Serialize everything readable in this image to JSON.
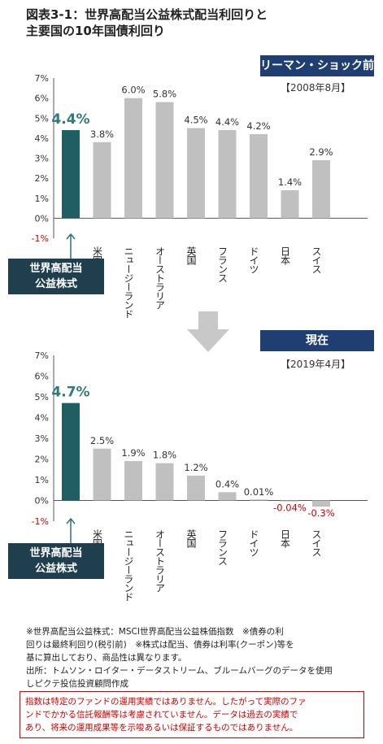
{
  "title": {
    "line1": "図表3-1：世界高配当公益株式配当利回りと",
    "line2": "主要国の10年国債利回り"
  },
  "colors": {
    "highlight_bar": "#1f5f63",
    "bar": "#c0c0c0",
    "badge": "#1f3f73",
    "highlight_box": "#1f3f4f",
    "negative_text": "#cc0000",
    "arrow": "#c8c8c8"
  },
  "highlight_label": {
    "line1": "世界高配当",
    "line2": "公益株式"
  },
  "chart_data": [
    {
      "type": "bar",
      "badge": "リーマン・ショック前",
      "date_label": "【2008年8月】",
      "categories": [
        "",
        "米国",
        "ニュージーランド",
        "オーストラリア",
        "英国",
        "フランス",
        "ドイツ",
        "日本",
        "スイス"
      ],
      "values": [
        4.4,
        3.8,
        6.0,
        5.8,
        4.5,
        4.4,
        4.2,
        1.4,
        2.9
      ],
      "value_labels": [
        "4.4%",
        "3.8%",
        "6.0%",
        "5.8%",
        "4.5%",
        "4.4%",
        "4.2%",
        "1.4%",
        "2.9%"
      ],
      "ylim": [
        -1,
        7
      ],
      "yticks": [
        "-1%",
        "0%",
        "1%",
        "2%",
        "3%",
        "4%",
        "5%",
        "6%",
        "7%"
      ],
      "grid": false
    },
    {
      "type": "bar",
      "badge": "現在",
      "date_label": "【2019年4月】",
      "categories": [
        "",
        "米国",
        "ニュージーランド",
        "オーストラリア",
        "英国",
        "フランス",
        "ドイツ",
        "日本",
        "スイス"
      ],
      "values": [
        4.7,
        2.5,
        1.9,
        1.8,
        1.2,
        0.4,
        0.01,
        -0.04,
        -0.3
      ],
      "value_labels": [
        "4.7%",
        "2.5%",
        "1.9%",
        "1.8%",
        "1.2%",
        "0.4%",
        "0.01%",
        "-0.04%",
        "-0.3%"
      ],
      "ylim": [
        -1,
        7
      ],
      "yticks": [
        "-1%",
        "0%",
        "1%",
        "2%",
        "3%",
        "4%",
        "5%",
        "6%",
        "7%"
      ],
      "grid": false
    }
  ],
  "notes": [
    "※世界高配当公益株式：MSCI世界高配当公益株価指数　※債券の利",
    "回りは最終利回り(税引前)　※株式は配当、債券は利率(クーポン)等を",
    "基に算出しており、商品性は異なります。",
    "出所：トムソン・ロイター・データストリーム、ブルームバーグのデータを使用",
    "しピクテ投信投資顧問作成"
  ],
  "disclaimer": [
    "指数は特定のファンドの運用実績ではありません。したがって実際のファ",
    "ンドでかかる信託報酬等は考慮されていません。データは過去の実績で",
    "あり、将来の運用成果等を示唆あるいは保証するものではありません。"
  ]
}
